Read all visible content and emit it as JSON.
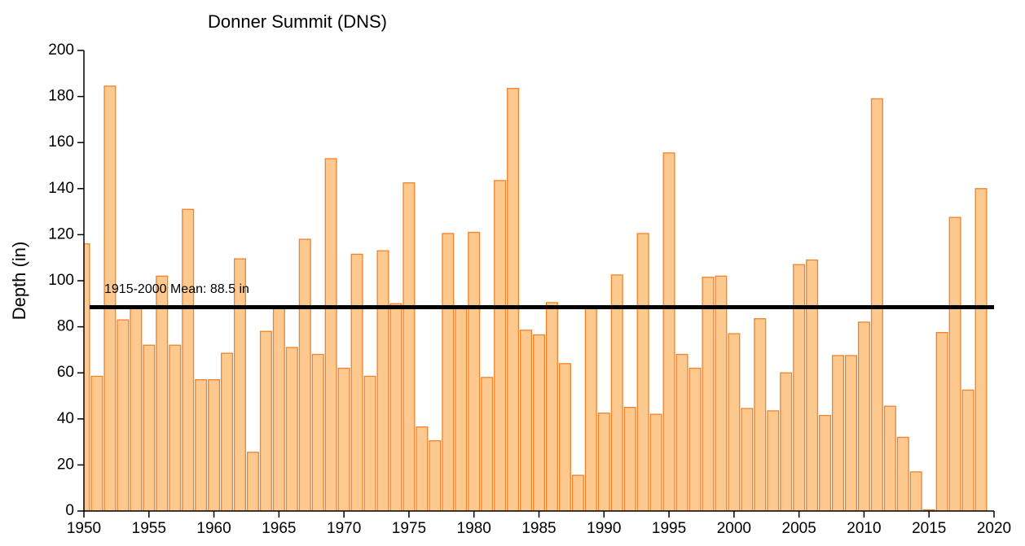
{
  "chart_data": {
    "type": "bar",
    "title": "Donner Summit (DNS)",
    "y_label": "Depth (in)",
    "x": [
      1950,
      1951,
      1952,
      1953,
      1954,
      1955,
      1956,
      1957,
      1958,
      1959,
      1960,
      1961,
      1962,
      1963,
      1964,
      1965,
      1966,
      1967,
      1968,
      1969,
      1970,
      1971,
      1972,
      1973,
      1974,
      1975,
      1976,
      1977,
      1978,
      1979,
      1980,
      1981,
      1982,
      1983,
      1984,
      1985,
      1986,
      1987,
      1988,
      1989,
      1990,
      1991,
      1992,
      1993,
      1994,
      1995,
      1996,
      1997,
      1998,
      1999,
      2000,
      2001,
      2002,
      2003,
      2004,
      2005,
      2006,
      2007,
      2008,
      2009,
      2010,
      2011,
      2012,
      2013,
      2014,
      2015,
      2016,
      2017,
      2018,
      2019
    ],
    "values": [
      116,
      58.5,
      184.5,
      83,
      88,
      72,
      102,
      72,
      131,
      57,
      57,
      68.5,
      109.5,
      25.5,
      78,
      88,
      71,
      118,
      68,
      153,
      62,
      111.5,
      58.5,
      113,
      90,
      142.5,
      36.5,
      30.5,
      120.5,
      88,
      121,
      58,
      143.5,
      183.5,
      78.5,
      76.5,
      90.5,
      64,
      15.5,
      88,
      42.5,
      102.5,
      45,
      120.5,
      42,
      155.5,
      68,
      62,
      101.5,
      102,
      77,
      44.5,
      83.5,
      43.5,
      60,
      107,
      109,
      41.5,
      67.5,
      67.5,
      82,
      179,
      45.5,
      32,
      17,
      0.5,
      77.5,
      127.5,
      52.5,
      140
    ],
    "color": "#fdc98f",
    "edge_color": "#f0822a",
    "mean": 88.5,
    "mean_label": "1915-2000 Mean: 88.5 in",
    "mean_color": "#000000",
    "xlim": [
      1950,
      2020
    ],
    "xticks": [
      1950,
      1955,
      1960,
      1965,
      1970,
      1975,
      1980,
      1985,
      1990,
      1995,
      2000,
      2005,
      2010,
      2015,
      2020
    ],
    "ylim": [
      0,
      200
    ],
    "yticks": [
      0,
      20,
      40,
      60,
      80,
      100,
      120,
      140,
      160,
      180,
      200
    ]
  }
}
